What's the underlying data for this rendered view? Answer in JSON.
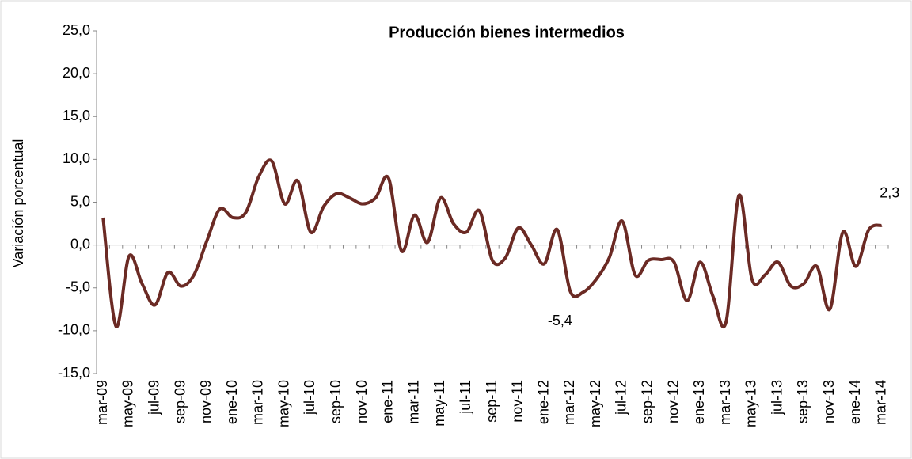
{
  "chart_data": {
    "type": "line",
    "title": "Producción bienes intermedios",
    "y_label": "Variación porcentual",
    "categories": [
      "mar-09",
      null,
      "may-09",
      null,
      "jul-09",
      null,
      "sep-09",
      null,
      "nov-09",
      null,
      "ene-10",
      null,
      "mar-10",
      null,
      "may-10",
      null,
      "jul-10",
      null,
      "sep-10",
      null,
      "nov-10",
      null,
      "ene-11",
      null,
      "mar-11",
      null,
      "may-11",
      null,
      "jul-11",
      null,
      "sep-11",
      null,
      "nov-11",
      null,
      "ene-12",
      null,
      "mar-12",
      null,
      "may-12",
      null,
      "jul-12",
      null,
      "sep-12",
      null,
      "nov-12",
      null,
      "ene-13",
      null,
      "mar-13",
      null,
      "may-13",
      null,
      "jul-13",
      null,
      "sep-13",
      null,
      "nov-13",
      null,
      "ene-14",
      null,
      "mar-14"
    ],
    "values": [
      3.2,
      -9.5,
      -1.3,
      -4.5,
      -7.0,
      -3.2,
      -4.8,
      -3.5,
      0.5,
      4.2,
      3.2,
      3.8,
      8.0,
      9.8,
      4.8,
      7.5,
      1.5,
      4.5,
      6.0,
      5.5,
      4.8,
      5.5,
      7.8,
      -0.7,
      3.5,
      0.3,
      5.5,
      2.5,
      1.5,
      4.0,
      -1.8,
      -1.5,
      2.0,
      0,
      -2.2,
      1.8,
      -5.4,
      -5.5,
      -4.0,
      -1.5,
      2.8,
      -3.5,
      -1.8,
      -1.7,
      -2.0,
      -6.5,
      -2.0,
      -6.0,
      -9.0,
      5.8,
      -4.0,
      -3.5,
      -2.0,
      -4.8,
      -4.5,
      -2.5,
      -7.5,
      1.5,
      -2.5,
      1.8,
      2.3
    ],
    "value_labels": [
      null,
      null,
      null,
      null,
      null,
      null,
      null,
      null,
      null,
      null,
      null,
      null,
      null,
      null,
      null,
      null,
      null,
      null,
      null,
      null,
      null,
      null,
      null,
      null,
      null,
      null,
      null,
      null,
      null,
      null,
      null,
      null,
      null,
      null,
      null,
      null,
      "-5,4",
      null,
      null,
      null,
      null,
      null,
      null,
      null,
      null,
      null,
      null,
      null,
      null,
      null,
      null,
      null,
      null,
      null,
      null,
      null,
      null,
      null,
      null,
      null,
      "2,3"
    ],
    "color": "#6b2a24",
    "ylim": [
      -15,
      25
    ],
    "yticks": [
      {
        "value": -15,
        "label": "-15,0"
      },
      {
        "value": -10,
        "label": "-10,0"
      },
      {
        "value": -5,
        "label": "-5,0"
      },
      {
        "value": 0,
        "label": "0,0"
      },
      {
        "value": 5,
        "label": "5,0"
      },
      {
        "value": 10,
        "label": "10,0"
      },
      {
        "value": 15,
        "label": "15,0"
      },
      {
        "value": 20,
        "label": "20,0"
      },
      {
        "value": 25,
        "label": "25,0"
      }
    ],
    "grid": false
  }
}
